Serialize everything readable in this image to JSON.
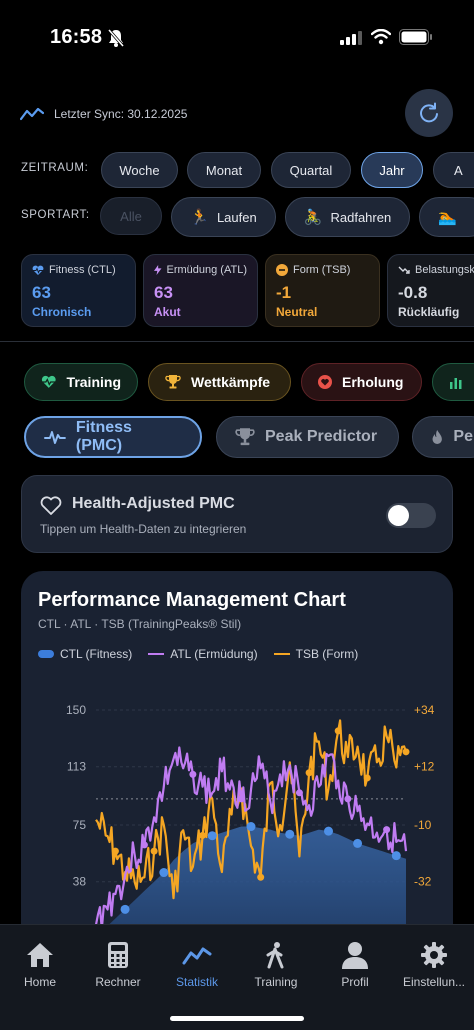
{
  "status_bar": {
    "time": "16:58"
  },
  "sync": {
    "text": "Letzter Sync: 30.12.2025"
  },
  "filters": {
    "zeitraum_label": "ZEITRAUM:",
    "zeitraum_options": [
      "Woche",
      "Monat",
      "Quartal",
      "Jahr",
      "A"
    ],
    "zeitraum_selected": "Jahr",
    "sportart_label": "SPORTART:",
    "sportart_options": [
      "Alle",
      "Laufen",
      "Radfahren"
    ]
  },
  "metrics": [
    {
      "label": "Fitness (CTL)",
      "value": "63",
      "sub": "Chronisch",
      "color": "#5b9cf0",
      "icon": "heart-pulse-icon"
    },
    {
      "label": "Ermüdung (ATL)",
      "value": "63",
      "sub": "Akut",
      "color": "#c891f5",
      "icon": "bolt-icon"
    },
    {
      "label": "Form (TSB)",
      "value": "-1",
      "sub": "Neutral",
      "color": "#f2a83a",
      "icon": "minus-circle-icon"
    },
    {
      "label": "Belastungsk",
      "value": "-0.8",
      "sub": "Rückläufig",
      "color": "#d6d9e0",
      "icon": "trend-down-icon"
    }
  ],
  "categories": [
    {
      "label": "Training",
      "icon": "heart-pulse-icon",
      "color": "#3ec68a"
    },
    {
      "label": "Wettkämpfe",
      "icon": "trophy-icon",
      "color": "#f0b43a"
    },
    {
      "label": "Erholung",
      "icon": "heart-icon",
      "color": "#e8524a"
    }
  ],
  "tabs": [
    {
      "label": "Fitness (PMC)",
      "icon": "pulse-icon",
      "active": true
    },
    {
      "label": "Peak Predictor",
      "icon": "trophy-icon",
      "active": false
    },
    {
      "label": "Pe",
      "icon": "flame-icon",
      "active": false
    }
  ],
  "health": {
    "title": "Health-Adjusted PMC",
    "subtitle": "Tippen um Health-Daten zu integrieren",
    "enabled": false
  },
  "chart_data": {
    "type": "line",
    "title": "Performance Management Chart",
    "subtitle": "CTL · ATL · TSB (TrainingPeaks® Stil)",
    "legend": [
      "CTL (Fitness)",
      "ATL (Ermüdung)",
      "TSB (Form)"
    ],
    "left_axis_ticks": [
      "150",
      "113",
      "75",
      "38"
    ],
    "right_axis_ticks": [
      "+34",
      "+12",
      "-10",
      "-32"
    ],
    "ylim_left": [
      0,
      150
    ],
    "ylim_right": [
      -54,
      34
    ],
    "colors": {
      "ctl": "#3c7ddb",
      "atl": "#c07cf2",
      "tsb": "#f5a623"
    },
    "ctl": [
      0,
      8,
      14,
      20,
      26,
      32,
      38,
      44,
      52,
      58,
      63,
      66,
      68,
      70,
      72,
      74,
      74,
      73,
      72,
      70,
      69,
      68,
      70,
      72,
      71,
      69,
      66,
      63,
      61,
      59,
      57,
      55,
      53
    ],
    "atl": [
      10,
      22,
      30,
      42,
      55,
      62,
      80,
      100,
      118,
      112,
      108,
      100,
      96,
      110,
      104,
      92,
      98,
      112,
      90,
      108,
      114,
      96,
      88,
      100,
      120,
      104,
      92,
      84,
      76,
      70,
      72,
      64,
      58
    ],
    "tsb": [
      -8,
      -14,
      -20,
      -28,
      -32,
      -30,
      -20,
      -10,
      -38,
      -12,
      -26,
      -14,
      0,
      -28,
      -6,
      4,
      -18,
      -30,
      6,
      -10,
      14,
      -22,
      10,
      22,
      4,
      26,
      16,
      20,
      8,
      14,
      24,
      12,
      18
    ],
    "ctl_dots": [
      3,
      7,
      12,
      16,
      20,
      24,
      27,
      31
    ],
    "atl_dots": [
      5,
      10,
      15,
      21,
      26,
      30
    ],
    "tsb_dots": [
      2,
      6,
      11,
      17,
      22,
      25,
      28,
      32
    ]
  },
  "nav": {
    "items": [
      {
        "label": "Home",
        "icon": "home-icon"
      },
      {
        "label": "Rechner",
        "icon": "calculator-icon"
      },
      {
        "label": "Statistik",
        "icon": "chart-icon"
      },
      {
        "label": "Training",
        "icon": "walk-icon"
      },
      {
        "label": "Profil",
        "icon": "person-icon"
      },
      {
        "label": "Einstellun...",
        "icon": "gear-icon"
      }
    ],
    "active": "Statistik"
  }
}
